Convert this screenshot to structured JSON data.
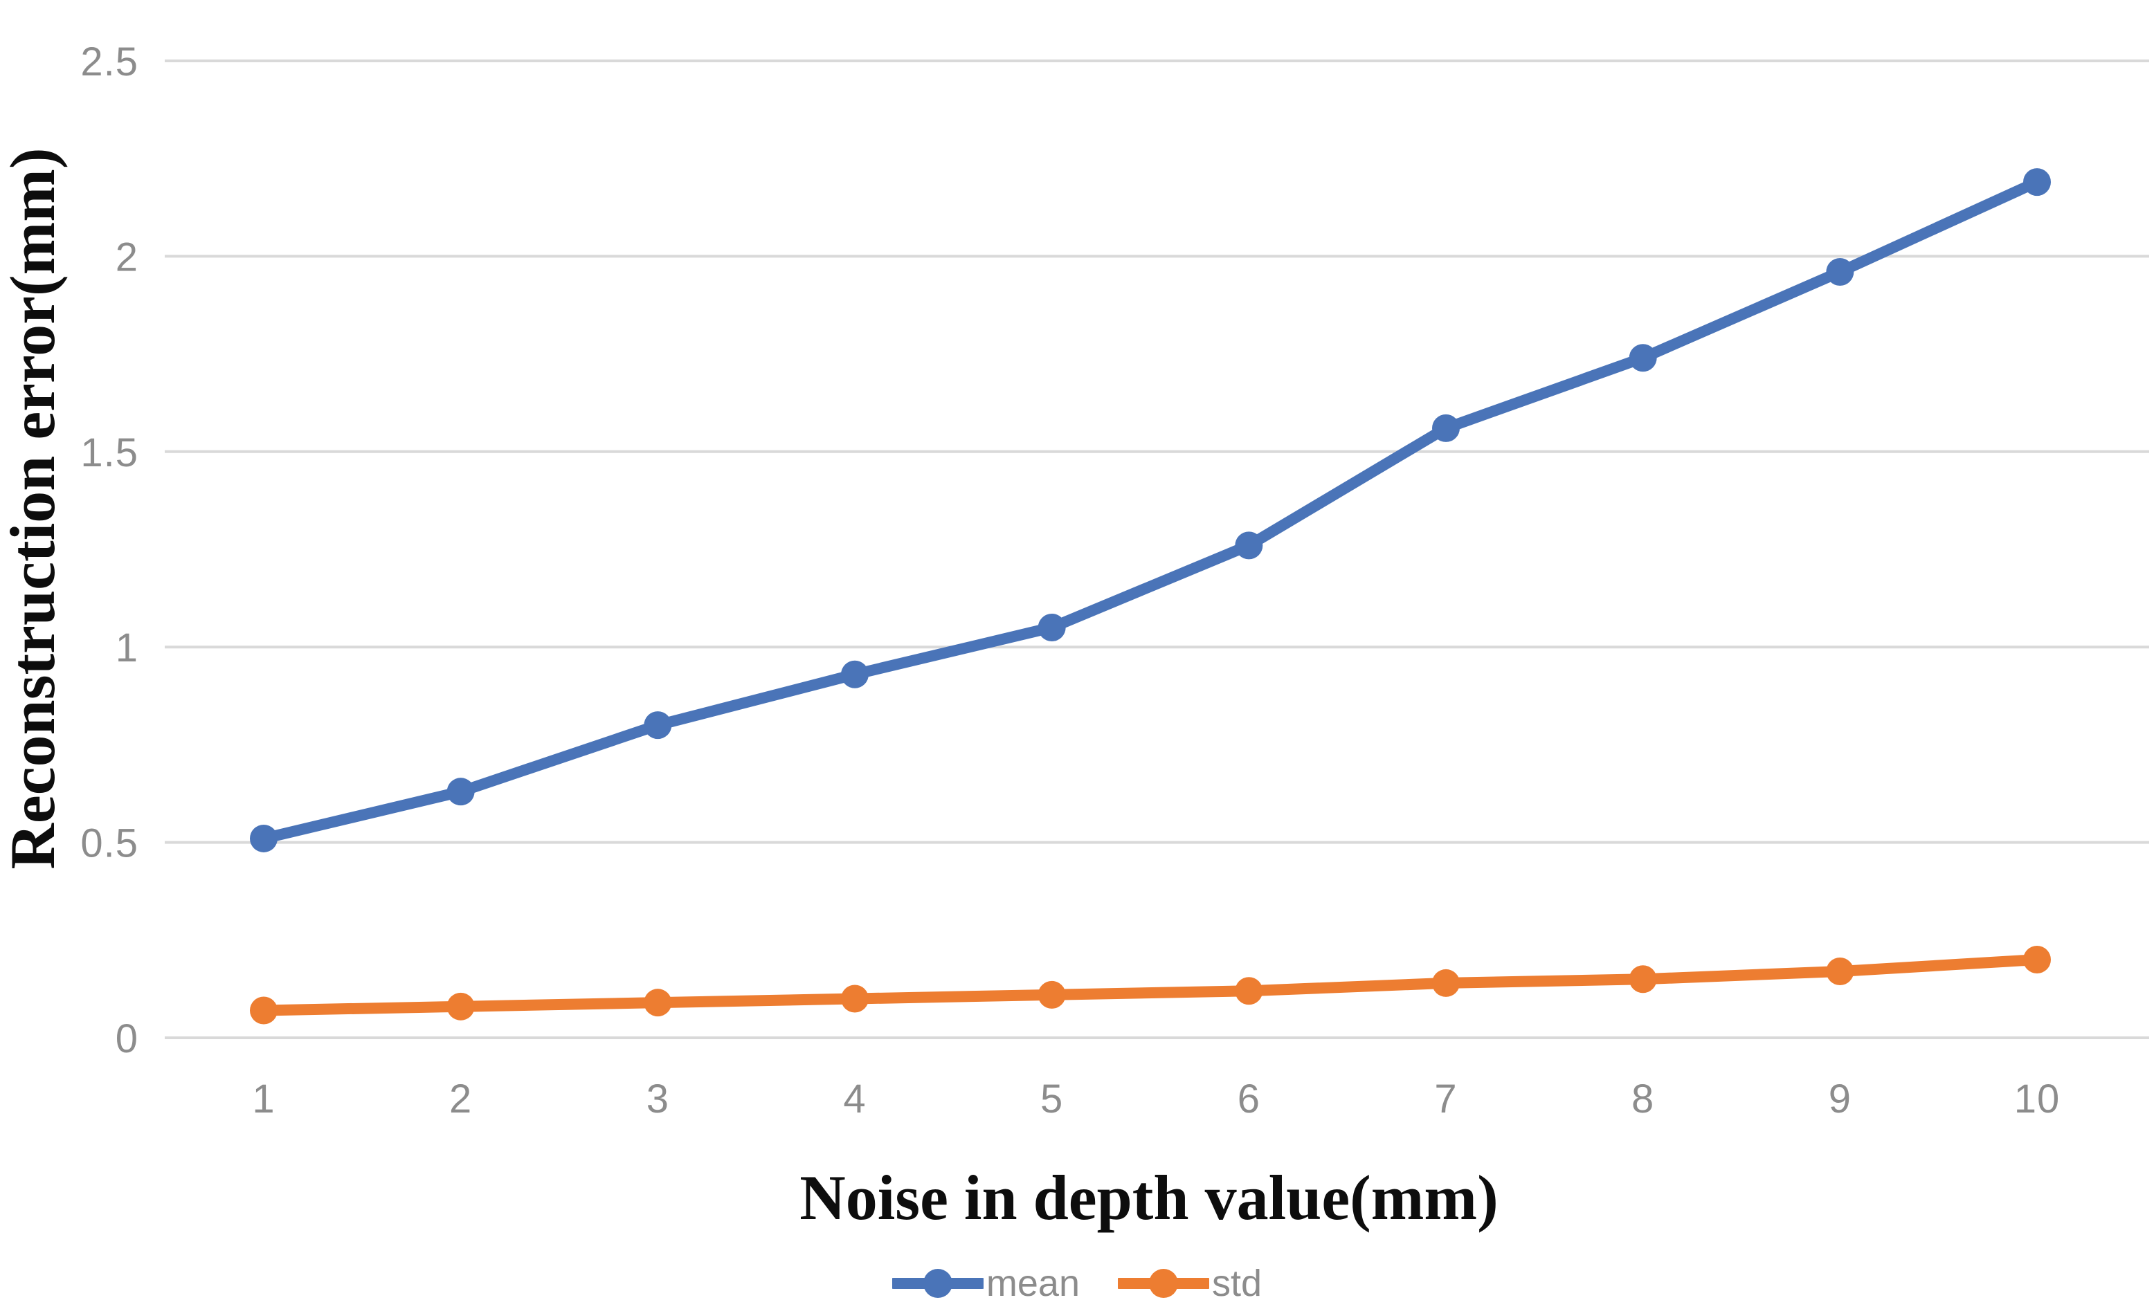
{
  "chart_data": {
    "type": "line",
    "title": "",
    "xlabel": "Noise in depth value(mm)",
    "ylabel": "Reconstruction error(mm)",
    "categories": [
      1,
      2,
      3,
      4,
      5,
      6,
      7,
      8,
      9,
      10
    ],
    "series": [
      {
        "name": "mean",
        "color": "#4A74B8",
        "values": [
          0.51,
          0.63,
          0.8,
          0.93,
          1.05,
          1.26,
          1.56,
          1.74,
          1.96,
          2.19
        ]
      },
      {
        "name": "std",
        "color": "#ED7D31",
        "values": [
          0.07,
          0.08,
          0.09,
          0.1,
          0.11,
          0.12,
          0.14,
          0.15,
          0.17,
          0.2
        ]
      }
    ],
    "y_ticks": [
      {
        "value": 0,
        "label": "0"
      },
      {
        "value": 0.5,
        "label": "0.5"
      },
      {
        "value": 1,
        "label": "1"
      },
      {
        "value": 1.5,
        "label": "1.5"
      },
      {
        "value": 2,
        "label": "2"
      },
      {
        "value": 2.5,
        "label": "2.5"
      }
    ],
    "ylim": [
      0,
      2.5
    ],
    "grid": true,
    "legend_position": "bottom",
    "colors": {
      "gridline": "#D9D9D9",
      "tick_label": "#8C8C8C",
      "axis_title": "#0D0D0D",
      "background": "#FFFFFF"
    }
  }
}
